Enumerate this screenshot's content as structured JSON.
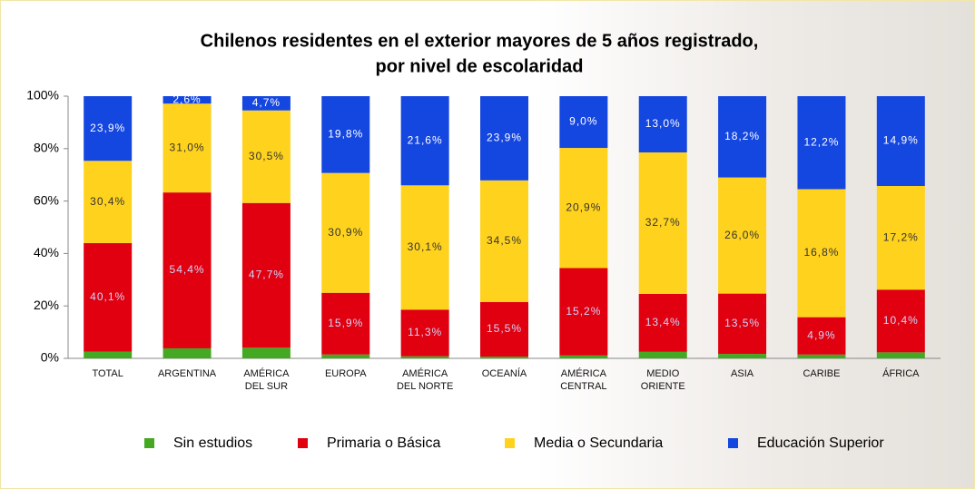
{
  "chart_data": {
    "type": "bar",
    "stacked": "percent",
    "title": [
      "Chilenos residentes en el exterior mayores de 5 años registrado,",
      "por nivel de escolaridad"
    ],
    "categories": [
      "TOTAL",
      "ARGENTINA",
      "AMÉRICA DEL SUR",
      "EUROPA",
      "AMÉRICA DEL NORTE",
      "OCEANÍA",
      "AMÉRICA CENTRAL",
      "MEDIO ORIENTE",
      "ASIA",
      "CARIBE",
      "ÁFRICA"
    ],
    "series": [
      {
        "name": "Sin estudios",
        "color": "#45a823",
        "values": [
          2.5,
          3.5,
          3.5,
          1,
          0.5,
          0.5,
          0.5,
          1.5,
          1,
          0.5,
          1
        ]
      },
      {
        "name": "Primaria o Básica",
        "color": "#e0000f",
        "values": [
          40.1,
          54.4,
          47.7,
          15.9,
          11.3,
          15.5,
          15.2,
          13.4,
          13.5,
          4.9,
          10.4
        ],
        "value_labels": [
          "40,1%",
          "54,4%",
          "47,7%",
          "15,9%",
          "11,3%",
          "15,5%",
          "15,2%",
          "13,4%",
          "13,5%",
          "4,9%",
          "10,4%"
        ]
      },
      {
        "name": "Media o Secundaria",
        "color": "#ffd21e",
        "values": [
          30.4,
          31.0,
          30.5,
          30.9,
          30.1,
          34.5,
          20.9,
          32.7,
          26.0,
          16.8,
          17.2
        ],
        "value_labels": [
          "30,4%",
          "31,0%",
          "30,5%",
          "30,9%",
          "30,1%",
          "34,5%",
          "20,9%",
          "32,7%",
          "26,0%",
          "16,8%",
          "17,2%"
        ]
      },
      {
        "name": "Educación Superior",
        "color": "#1446e0",
        "values": [
          23.9,
          2.6,
          4.7,
          19.8,
          21.6,
          23.9,
          9.0,
          13.0,
          18.2,
          12.2,
          14.9
        ],
        "value_labels": [
          "23,9%",
          "2,6%",
          "4,7%",
          "19,8%",
          "21,6%",
          "23,9%",
          "9,0%",
          "13,0%",
          "18,2%",
          "12,2%",
          "14,9%"
        ]
      }
    ],
    "ylim": [
      0,
      100
    ],
    "yticks": [
      {
        "value": 0,
        "label": "0%"
      },
      {
        "value": 20,
        "label": "20%"
      },
      {
        "value": 40,
        "label": "40%"
      },
      {
        "value": 60,
        "label": "60%"
      },
      {
        "value": 80,
        "label": "80%"
      },
      {
        "value": 100,
        "label": "100%"
      }
    ],
    "legend": "bottom"
  }
}
